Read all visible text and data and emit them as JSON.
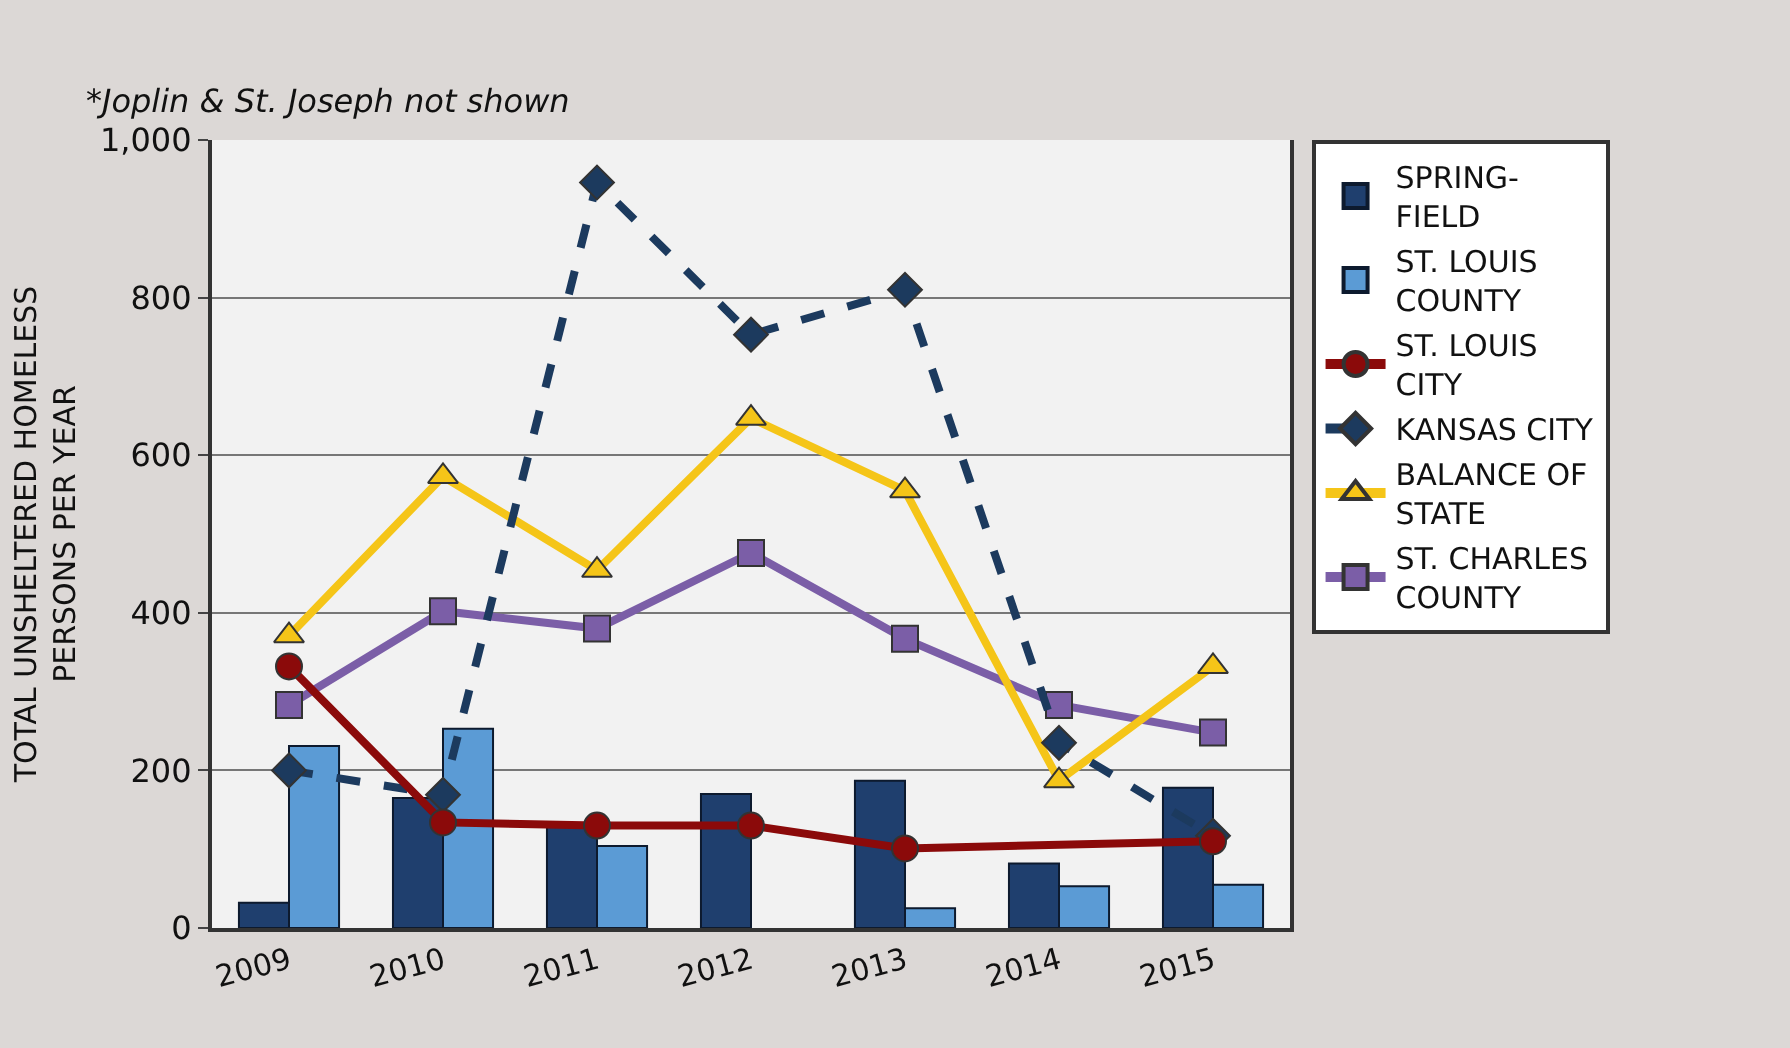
{
  "chart_data": {
    "type": "bar",
    "ylabel": "TOTAL UNSHELTERED HOMELESS\nPERSONS PER YEAR",
    "annotations": [
      "*Joplin & St. Joseph not shown"
    ],
    "categories": [
      "2009",
      "2010",
      "2011",
      "2012",
      "2013",
      "2014",
      "2015"
    ],
    "ylim": [
      0,
      1000
    ],
    "yticks": [
      0,
      200,
      400,
      600,
      800,
      {
        "value": 1000,
        "label": "1,000"
      }
    ],
    "grid": "y",
    "legend": "right",
    "series": [
      {
        "name": "SPRING-\nFIELD",
        "color": "#1f3f6e",
        "values": [
          32,
          165,
          130,
          170,
          187,
          82,
          178
        ]
      },
      {
        "name": "ST. LOUIS\nCOUNTY",
        "color": "#5b9bd5",
        "values": [
          231,
          253,
          104,
          null,
          25,
          53,
          55
        ]
      },
      {
        "name": "ST. LOUIS\nCITY",
        "color": "#8b0a0a",
        "type": "line",
        "marker": "circle",
        "line_style": "solid",
        "values": [
          332,
          134,
          130,
          130,
          101,
          null,
          110
        ]
      },
      {
        "name": "KANSAS CITY",
        "color": "#1c3a5e",
        "type": "line",
        "marker": "diamond",
        "line_style": "dashed",
        "values": [
          200,
          169,
          946,
          753,
          810,
          235,
          117
        ]
      },
      {
        "name": "BALANCE OF\nSTATE",
        "color": "#f5c518",
        "type": "line",
        "marker": "triangle",
        "line_style": "solid",
        "values": [
          371,
          573,
          454,
          647,
          555,
          187,
          332
        ]
      },
      {
        "name": "ST. CHARLES\nCOUNTY",
        "color": "#7b5ea7",
        "type": "line",
        "marker": "square",
        "line_style": "solid",
        "values": [
          283,
          402,
          380,
          476,
          367,
          283,
          248
        ]
      }
    ]
  }
}
